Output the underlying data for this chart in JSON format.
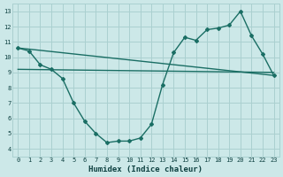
{
  "title": "",
  "xlabel": "Humidex (Indice chaleur)",
  "ylabel": "",
  "bg_color": "#cce8e8",
  "grid_color": "#aad0d0",
  "line_color": "#1a6e64",
  "xlim": [
    -0.5,
    23.5
  ],
  "ylim": [
    3.5,
    13.5
  ],
  "xticks": [
    0,
    1,
    2,
    3,
    4,
    5,
    6,
    7,
    8,
    9,
    10,
    11,
    12,
    13,
    14,
    15,
    16,
    17,
    18,
    19,
    20,
    21,
    22,
    23
  ],
  "yticks": [
    4,
    5,
    6,
    7,
    8,
    9,
    10,
    11,
    12,
    13
  ],
  "curve1_x": [
    0,
    1,
    2,
    3,
    4,
    5,
    6,
    7,
    8,
    9,
    10,
    11,
    12,
    13,
    14,
    15,
    16,
    17,
    18,
    19,
    20,
    21,
    22,
    23
  ],
  "curve1_y": [
    10.6,
    10.4,
    9.5,
    9.2,
    8.6,
    7.0,
    5.8,
    5.0,
    4.4,
    4.5,
    4.5,
    4.7,
    5.6,
    8.2,
    10.3,
    11.3,
    11.1,
    11.8,
    11.9,
    12.1,
    13.0,
    11.4,
    10.2,
    8.8
  ],
  "curve2_x": [
    0,
    23
  ],
  "curve2_y": [
    10.6,
    8.8
  ],
  "curve3_x": [
    0,
    23
  ],
  "curve3_y": [
    9.2,
    9.0
  ]
}
